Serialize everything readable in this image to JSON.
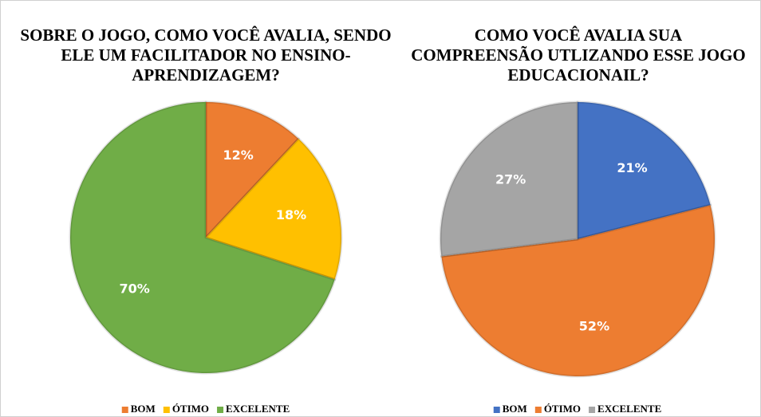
{
  "chart_data": [
    {
      "type": "pie",
      "title": "SOBRE O JOGO, COMO VOCÊ AVALIA, SENDO ELE UM FACILITADOR NO ENSINO-APRENDIZAGEM?",
      "categories": [
        "BOM",
        "ÓTIMO",
        "EXCELENTE"
      ],
      "values": [
        12,
        18,
        70
      ],
      "value_labels": [
        "12%",
        "18%",
        "70%"
      ],
      "colors": [
        "#ED7D31",
        "#FFC000",
        "#70AD47"
      ],
      "legend": "bottom"
    },
    {
      "type": "pie",
      "title": "COMO VOCÊ AVALIA SUA COMPREENSÃO UTLIZANDO ESSE JOGO EDUCACIONAIL?",
      "categories": [
        "BOM",
        "ÓTIMO",
        "EXCELENTE"
      ],
      "values": [
        21,
        52,
        27
      ],
      "value_labels": [
        "21%",
        "52%",
        "27%"
      ],
      "colors": [
        "#4472C4",
        "#ED7D31",
        "#A5A5A5"
      ],
      "legend": "bottom"
    }
  ]
}
